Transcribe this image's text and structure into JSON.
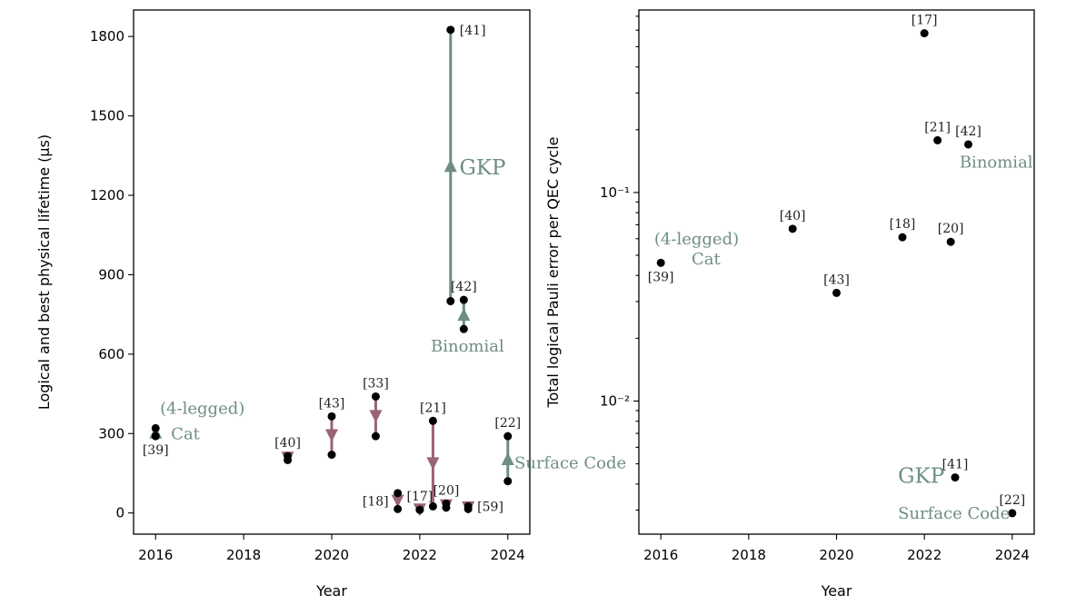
{
  "colors": {
    "green": "#6e8e82",
    "red": "#9a6472",
    "point": "#000000"
  },
  "chart_data": [
    {
      "type": "scatter",
      "panel": "left",
      "xlabel": "Year",
      "ylabel": "Logical and best physical lifetime (μs)",
      "xlim": [
        2015.5,
        2024.5
      ],
      "ylim": [
        -80,
        1900
      ],
      "xticks": [
        2016,
        2018,
        2020,
        2022,
        2024
      ],
      "xtick_labels": [
        "2016",
        "2018",
        "2020",
        "2022",
        "2024"
      ],
      "yticks": [
        0,
        300,
        600,
        900,
        1200,
        1500,
        1800
      ],
      "ytick_labels": [
        "0",
        "300",
        "600",
        "900",
        "1200",
        "1500",
        "1800"
      ],
      "pairs": [
        {
          "ref": "[39]",
          "x": 2016.0,
          "logical": 320,
          "physical": 290,
          "color": "green",
          "ref_pos": "below"
        },
        {
          "ref": "[40]",
          "x": 2019.0,
          "logical": 200,
          "physical": 215,
          "color": "red",
          "ref_pos": "above"
        },
        {
          "ref": "[43]",
          "x": 2020.0,
          "logical": 220,
          "physical": 365,
          "color": "red",
          "ref_pos": "above"
        },
        {
          "ref": "[33]",
          "x": 2021.0,
          "logical": 290,
          "physical": 440,
          "color": "red",
          "ref_pos": "above"
        },
        {
          "ref": "[18]",
          "x": 2021.5,
          "logical": 15,
          "physical": 75,
          "color": "red",
          "ref_pos": "left"
        },
        {
          "ref": "[17]",
          "x": 2022.0,
          "logical": 12,
          "physical": 12,
          "color": "red",
          "ref_pos": "above"
        },
        {
          "ref": "[21]",
          "x": 2022.3,
          "logical": 25,
          "physical": 348,
          "color": "red",
          "ref_pos": "above"
        },
        {
          "ref": "[41]",
          "x": 2022.7,
          "logical": 1825,
          "physical": 800,
          "color": "green",
          "ref_pos": "right"
        },
        {
          "ref": "[20]",
          "x": 2022.6,
          "logical": 20,
          "physical": 35,
          "color": "red",
          "ref_pos": "above"
        },
        {
          "ref": "[42]",
          "x": 2023.0,
          "logical": 805,
          "physical": 695,
          "color": "green",
          "ref_pos": "above"
        },
        {
          "ref": "[59]",
          "x": 2023.1,
          "logical": 15,
          "physical": 25,
          "color": "red",
          "ref_pos": "right"
        },
        {
          "ref": "[22]",
          "x": 2024.0,
          "logical": 290,
          "physical": 120,
          "color": "green",
          "ref_pos": "above"
        }
      ],
      "annotations": [
        {
          "text": "(4-legged)",
          "x": 2016.1,
          "y": 395
        },
        {
          "text": "Cat",
          "x": 2016.35,
          "y": 300
        },
        {
          "text": "GKP",
          "x": 2022.9,
          "y": 1300
        },
        {
          "text": "Binomial",
          "x": 2022.25,
          "y": 630
        },
        {
          "text": "Surface Code",
          "x": 2024.15,
          "y": 190
        }
      ]
    },
    {
      "type": "scatter",
      "panel": "right",
      "xlabel": "Year",
      "ylabel": "Total logical Pauli error per QEC cycle",
      "yscale": "log",
      "xlim": [
        2015.5,
        2024.5
      ],
      "ylim": [
        0.0023,
        0.75
      ],
      "xticks": [
        2016,
        2018,
        2020,
        2022,
        2024
      ],
      "xtick_labels": [
        "2016",
        "2018",
        "2020",
        "2022",
        "2024"
      ],
      "yticks": [
        0.01,
        0.1
      ],
      "ytick_labels": [
        "10⁻²",
        "10⁻¹"
      ],
      "points": [
        {
          "ref": "[39]",
          "x": 2016.0,
          "y": 0.046,
          "ref_pos": "below"
        },
        {
          "ref": "[40]",
          "x": 2019.0,
          "y": 0.067,
          "ref_pos": "above"
        },
        {
          "ref": "[43]",
          "x": 2020.0,
          "y": 0.033,
          "ref_pos": "above"
        },
        {
          "ref": "[18]",
          "x": 2021.5,
          "y": 0.061,
          "ref_pos": "above"
        },
        {
          "ref": "[17]",
          "x": 2022.0,
          "y": 0.58,
          "ref_pos": "above"
        },
        {
          "ref": "[21]",
          "x": 2022.3,
          "y": 0.178,
          "ref_pos": "above"
        },
        {
          "ref": "[20]",
          "x": 2022.6,
          "y": 0.058,
          "ref_pos": "above"
        },
        {
          "ref": "[42]",
          "x": 2023.0,
          "y": 0.17,
          "ref_pos": "above"
        },
        {
          "ref": "[41]",
          "x": 2022.7,
          "y": 0.0043,
          "ref_pos": "above"
        },
        {
          "ref": "[22]",
          "x": 2024.0,
          "y": 0.0029,
          "ref_pos": "above"
        }
      ],
      "annotations": [
        {
          "text": "(4-legged)",
          "x": 2015.85,
          "y": 0.06
        },
        {
          "text": "Cat",
          "x": 2016.7,
          "y": 0.048
        },
        {
          "text": "Binomial",
          "x": 2022.8,
          "y": 0.14
        },
        {
          "text": "GKP",
          "x": 2021.4,
          "y": 0.0043
        },
        {
          "text": "Surface Code",
          "x": 2021.4,
          "y": 0.0029
        }
      ]
    }
  ]
}
